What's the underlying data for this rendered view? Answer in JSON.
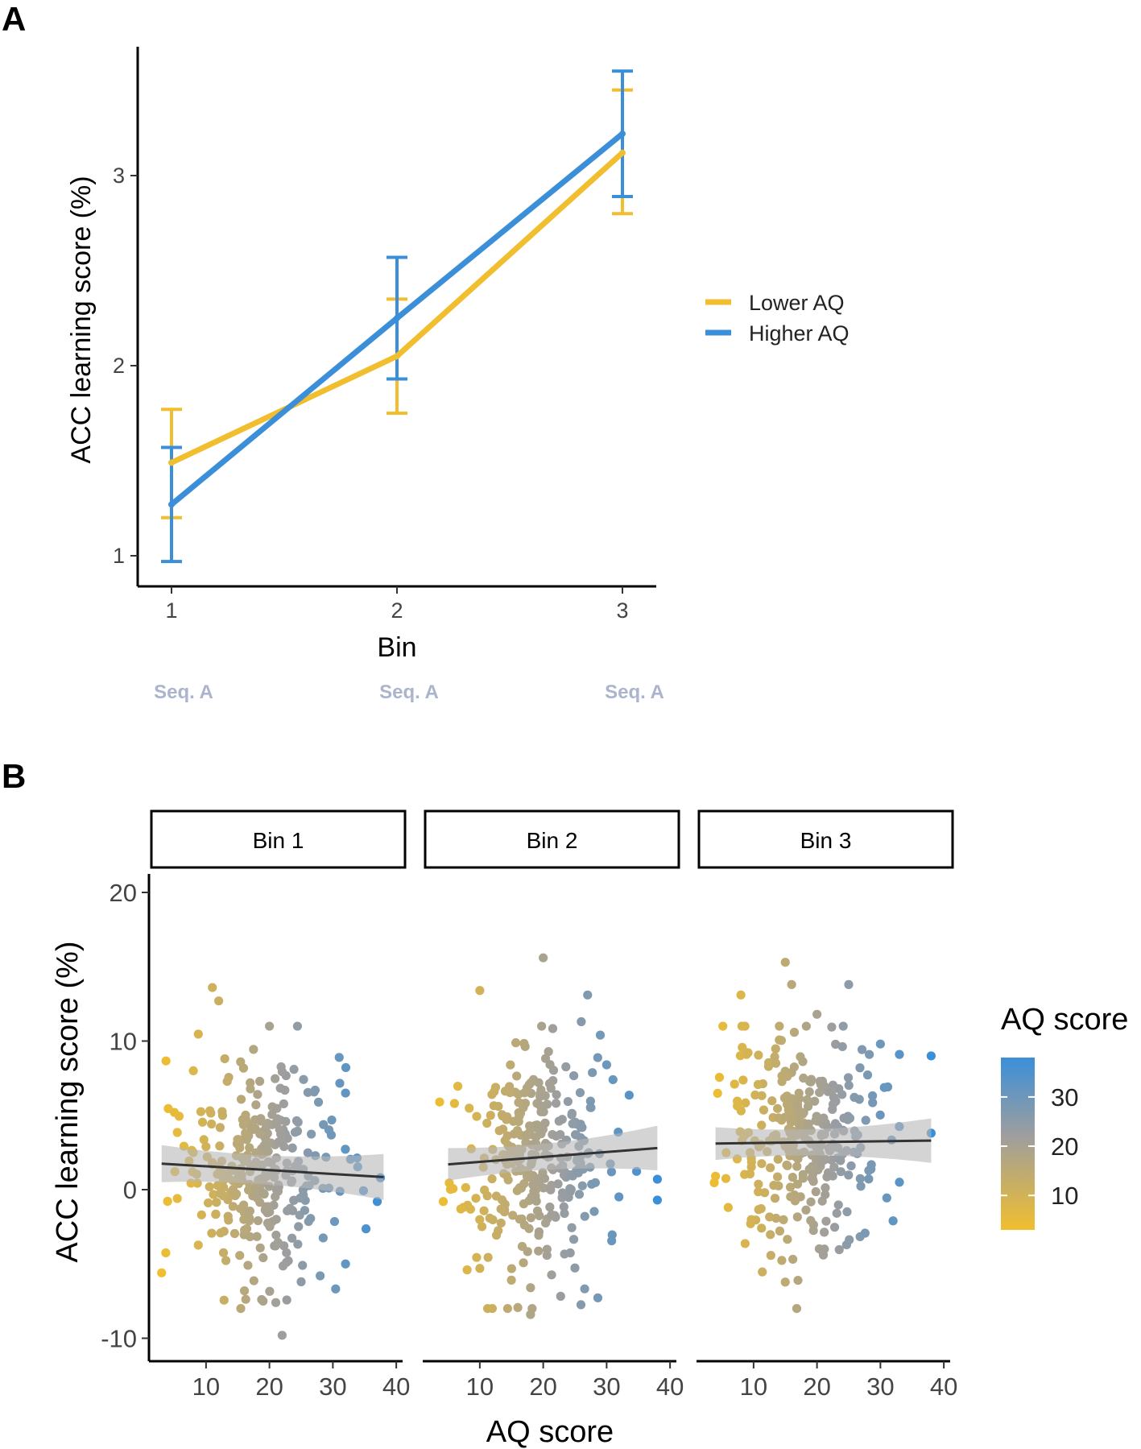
{
  "chart_data": [
    {
      "panel": "A",
      "type": "line",
      "xlabel": "Bin",
      "ylabel": "ACC learning score (%)",
      "categories": [
        "1",
        "2",
        "3"
      ],
      "ylim": [
        0.9,
        3.7
      ],
      "yticks": [
        1,
        2,
        3
      ],
      "sequence_labels": [
        "Seq. A",
        "Seq. A",
        "Seq. A"
      ],
      "legend_position": "right",
      "series": [
        {
          "name": "Lower AQ",
          "color": "#f0be2e",
          "values": [
            1.49,
            2.05,
            3.12
          ],
          "lower": [
            1.2,
            1.75,
            2.8
          ],
          "upper": [
            1.77,
            2.35,
            3.45
          ]
        },
        {
          "name": "Higher AQ",
          "color": "#3b8fd8",
          "values": [
            1.27,
            2.25,
            3.22
          ],
          "lower": [
            0.97,
            1.93,
            2.89
          ],
          "upper": [
            1.57,
            2.57,
            3.55
          ]
        }
      ]
    },
    {
      "panel": "B",
      "type": "scatter",
      "xlabel": "AQ score",
      "ylabel": "ACC learning score (%)",
      "facets": [
        "Bin 1",
        "Bin 2",
        "Bin 3"
      ],
      "xticks": [
        10,
        20,
        30,
        40
      ],
      "xlim": [
        1,
        41
      ],
      "yticks": [
        -10,
        0,
        10,
        20
      ],
      "ylim": [
        -11.2,
        21.5
      ],
      "colorbar": {
        "title": "AQ score",
        "ticks": [
          10,
          20,
          30
        ],
        "range": [
          3,
          38
        ],
        "low_color": "#f0be2e",
        "mid_color": "#9e9e9e",
        "high_color": "#3b8fd8"
      },
      "fits": [
        {
          "x": [
            3,
            38
          ],
          "y": [
            1.75,
            0.85
          ],
          "se_lo": [
            0.5,
            -0.7
          ],
          "se_hi": [
            3.0,
            2.4
          ]
        },
        {
          "x": [
            5,
            38
          ],
          "y": [
            1.7,
            2.8
          ],
          "se_lo": [
            0.6,
            1.3
          ],
          "se_hi": [
            2.8,
            4.3
          ]
        },
        {
          "x": [
            4,
            38
          ],
          "y": [
            3.1,
            3.3
          ],
          "se_lo": [
            2.0,
            1.8
          ],
          "se_hi": [
            4.2,
            4.8
          ]
        }
      ],
      "highlight_points": [
        [
          [
            3,
            -5.6
          ],
          [
            11,
            13.6
          ],
          [
            12,
            12.7
          ],
          [
            20,
            11.0
          ],
          [
            19,
            -7.5
          ],
          [
            21,
            -7.6
          ],
          [
            22,
            -9.8
          ],
          [
            31,
            8.9
          ],
          [
            32,
            6.5
          ],
          [
            37.5,
            0.8
          ],
          [
            37,
            -0.8
          ],
          [
            32,
            -5.0
          ],
          [
            28,
            -5.8
          ],
          [
            25,
            -6.2
          ],
          [
            5,
            5.2
          ],
          [
            8,
            8.0
          ]
        ],
        [
          [
            6,
            5.8
          ],
          [
            10,
            13.4
          ],
          [
            20,
            15.6
          ],
          [
            18,
            -6.6
          ],
          [
            18,
            -8.4
          ],
          [
            27,
            13.1
          ],
          [
            29,
            10.4
          ],
          [
            30,
            8.4
          ],
          [
            31,
            7.4
          ],
          [
            38,
            0.7
          ],
          [
            38,
            -0.7
          ],
          [
            8,
            -5.4
          ],
          [
            10,
            -5.3
          ],
          [
            7,
            -1.3
          ],
          [
            26,
            11.3
          ]
        ],
        [
          [
            4,
            0.9
          ],
          [
            15,
            15.3
          ],
          [
            16,
            13.8
          ],
          [
            17,
            -6.1
          ],
          [
            20,
            11.8
          ],
          [
            25,
            13.8
          ],
          [
            33,
            9.1
          ],
          [
            38,
            9.0
          ],
          [
            38,
            3.8
          ],
          [
            30,
            9.8
          ],
          [
            33,
            0.5
          ],
          [
            32,
            -2.1
          ],
          [
            8,
            13.1
          ],
          [
            7,
            7.1
          ],
          [
            6,
            -1.2
          ],
          [
            21,
            -4.4
          ]
        ]
      ]
    }
  ],
  "panels": {
    "a": {
      "letter": "A",
      "xlabel": "Bin",
      "ylabel": "ACC learning score (%)",
      "legend": [
        "Lower AQ",
        "Higher AQ"
      ]
    },
    "b": {
      "letter": "B",
      "xlabel": "AQ score",
      "ylabel": "ACC learning score (%)",
      "legend_title": "AQ score"
    }
  },
  "colors": {
    "lower": "#f0be2e",
    "higher": "#3b8fd8",
    "fit_line": "#333333",
    "ribbon": "#b8b8b8",
    "seq_text": "#aab4cc"
  }
}
